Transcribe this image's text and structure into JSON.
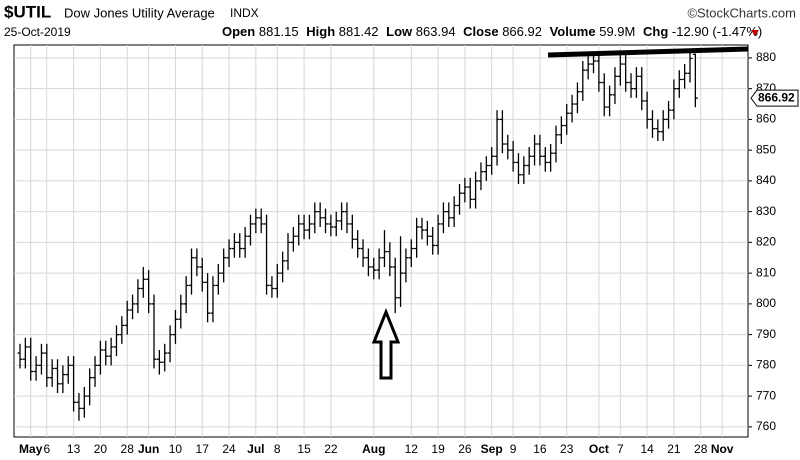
{
  "chart_data": {
    "type": "ohlc",
    "title": "$UTIL",
    "subtitle": "Dow Jones Utility Average",
    "exchange": "INDX",
    "date": "25-Oct-2019",
    "source": "©StockCharts.com",
    "stat_labels": [
      "Open",
      "High",
      "Low",
      "Close",
      "Volume",
      "Chg"
    ],
    "volume": "59.9M",
    "change": "-12.90 (-1.47%)",
    "color": "#000000",
    "grid": true,
    "ylim": [
      756.7,
      884.2
    ],
    "yticks": [
      760,
      770,
      780,
      790,
      800,
      810,
      820,
      830,
      840,
      850,
      860,
      870,
      880
    ],
    "categories": [
      null,
      null,
      "May",
      null,
      null,
      "6",
      null,
      null,
      null,
      null,
      "13",
      null,
      null,
      null,
      null,
      "20",
      null,
      null,
      null,
      null,
      "28",
      null,
      null,
      null,
      "Jun",
      null,
      null,
      null,
      null,
      "10",
      null,
      null,
      null,
      null,
      "17",
      null,
      null,
      null,
      null,
      "24",
      null,
      null,
      null,
      null,
      "Jul",
      null,
      null,
      null,
      "8",
      null,
      null,
      null,
      null,
      "15",
      null,
      null,
      null,
      null,
      "22",
      null,
      null,
      null,
      null,
      null,
      null,
      null,
      "Aug",
      null,
      null,
      null,
      null,
      null,
      null,
      "12",
      null,
      null,
      null,
      null,
      "19",
      null,
      null,
      null,
      null,
      "26",
      null,
      null,
      null,
      null,
      "Sep",
      null,
      null,
      null,
      "9",
      null,
      null,
      null,
      null,
      "16",
      null,
      null,
      null,
      null,
      "23",
      null,
      null,
      null,
      null,
      null,
      "Oct",
      null,
      null,
      null,
      "7",
      null,
      null,
      null,
      null,
      "14",
      null,
      null,
      null,
      null,
      "21",
      null,
      null,
      null,
      null,
      "28",
      null,
      null,
      null,
      "Nov",
      null,
      null
    ],
    "open": [
      784,
      782,
      786,
      778,
      780,
      784,
      776,
      779,
      774,
      777,
      780,
      768,
      766,
      770,
      776,
      780,
      785,
      783,
      786,
      790,
      793,
      798,
      800,
      805,
      808,
      800,
      782,
      781,
      784,
      790,
      795,
      800,
      806,
      815,
      812,
      807,
      797,
      806,
      810,
      815,
      818,
      820,
      818,
      822,
      826,
      828,
      826,
      806,
      805,
      810,
      814,
      820,
      822,
      826,
      824,
      826,
      830,
      828,
      826,
      825,
      827,
      830,
      826,
      821,
      818,
      815,
      812,
      811,
      815,
      817,
      812,
      802,
      810,
      815,
      818,
      825,
      824,
      822,
      819,
      826,
      830,
      828,
      832,
      836,
      838,
      834,
      840,
      843,
      845,
      848,
      860,
      852,
      850,
      846,
      842,
      845,
      848,
      852,
      848,
      846,
      849,
      855,
      858,
      862,
      865,
      869,
      876,
      878,
      879,
      872,
      864,
      868,
      874,
      878,
      872,
      870,
      874,
      866,
      860,
      857,
      856,
      860,
      863,
      870,
      873,
      875,
      881.15,
      null,
      null,
      null,
      null,
      null,
      null,
      null
    ],
    "high": [
      787,
      789,
      789,
      783,
      787,
      787,
      782,
      782,
      780,
      783,
      783,
      771,
      773,
      779,
      783,
      788,
      788,
      789,
      793,
      796,
      801,
      803,
      808,
      812,
      811,
      803,
      785,
      787,
      793,
      798,
      803,
      809,
      818,
      818,
      815,
      810,
      809,
      813,
      818,
      821,
      823,
      823,
      825,
      829,
      831,
      831,
      829,
      809,
      813,
      817,
      823,
      825,
      829,
      829,
      829,
      833,
      833,
      831,
      829,
      830,
      833,
      833,
      829,
      824,
      821,
      818,
      815,
      818,
      824,
      820,
      815,
      822,
      818,
      821,
      828,
      828,
      827,
      825,
      829,
      833,
      833,
      835,
      839,
      841,
      841,
      843,
      846,
      848,
      851,
      863,
      863,
      855,
      853,
      849,
      848,
      851,
      855,
      855,
      851,
      852,
      858,
      861,
      865,
      868,
      872,
      879,
      881,
      882,
      882,
      875,
      871,
      877,
      881,
      881,
      875,
      877,
      877,
      869,
      863,
      860,
      863,
      866,
      873,
      876,
      878,
      882,
      881.42,
      null,
      null,
      null,
      null,
      null,
      null,
      null
    ],
    "low": [
      779,
      779,
      775,
      775,
      777,
      773,
      773,
      771,
      771,
      774,
      765,
      762,
      763,
      767,
      773,
      777,
      780,
      780,
      783,
      787,
      790,
      795,
      797,
      802,
      797,
      779,
      777,
      778,
      781,
      787,
      792,
      797,
      803,
      809,
      804,
      794,
      794,
      803,
      807,
      812,
      815,
      815,
      815,
      819,
      823,
      823,
      803,
      802,
      802,
      807,
      811,
      817,
      819,
      821,
      821,
      823,
      825,
      823,
      822,
      822,
      824,
      823,
      818,
      815,
      812,
      809,
      808,
      808,
      812,
      809,
      797,
      799,
      807,
      812,
      815,
      821,
      819,
      816,
      816,
      823,
      825,
      825,
      829,
      833,
      831,
      831,
      837,
      840,
      842,
      845,
      849,
      847,
      843,
      839,
      839,
      842,
      845,
      845,
      843,
      843,
      846,
      852,
      855,
      859,
      862,
      866,
      873,
      875,
      869,
      861,
      861,
      865,
      871,
      869,
      867,
      867,
      863,
      857,
      854,
      853,
      853,
      857,
      860,
      867,
      870,
      872,
      863.94,
      null,
      null,
      null,
      null,
      null,
      null,
      null
    ],
    "close": [
      782,
      786,
      778,
      780,
      784,
      776,
      779,
      774,
      777,
      780,
      768,
      766,
      770,
      776,
      780,
      785,
      783,
      786,
      790,
      793,
      798,
      800,
      805,
      808,
      800,
      782,
      781,
      784,
      790,
      795,
      800,
      806,
      815,
      812,
      807,
      797,
      806,
      810,
      815,
      818,
      820,
      818,
      822,
      826,
      828,
      826,
      806,
      805,
      810,
      814,
      820,
      822,
      826,
      824,
      826,
      830,
      828,
      826,
      825,
      827,
      830,
      826,
      821,
      818,
      815,
      812,
      811,
      815,
      817,
      812,
      802,
      810,
      815,
      818,
      825,
      824,
      822,
      819,
      826,
      830,
      828,
      832,
      836,
      838,
      834,
      840,
      843,
      845,
      848,
      860,
      852,
      850,
      846,
      842,
      845,
      848,
      852,
      848,
      846,
      849,
      855,
      858,
      862,
      865,
      869,
      876,
      878,
      879,
      872,
      864,
      868,
      874,
      878,
      872,
      870,
      874,
      866,
      860,
      857,
      856,
      860,
      863,
      870,
      873,
      875,
      879.82,
      866.92,
      null,
      null,
      null,
      null,
      null,
      null,
      null
    ]
  }
}
